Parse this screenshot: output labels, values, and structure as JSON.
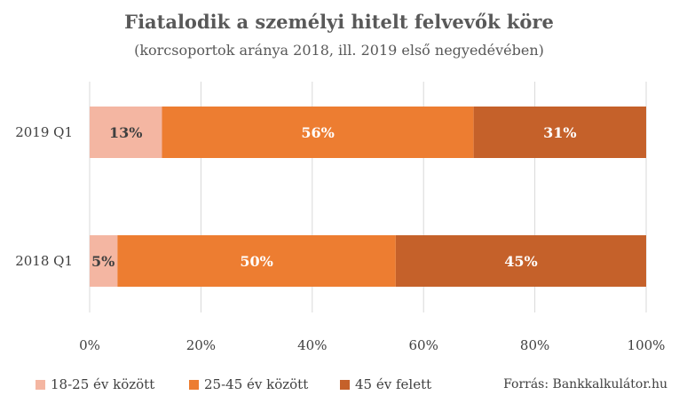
{
  "chart_data": {
    "type": "bar",
    "orientation": "horizontal",
    "stacked": true,
    "percent": true,
    "title": "Fiatalodik a személyi hitelt felvevők köre",
    "subtitle": "(korcsoportok aránya 2018, ill. 2019 első negyedévében)",
    "categories": [
      "2019 Q1",
      "2018 Q1"
    ],
    "series": [
      {
        "name": "18-25 év között",
        "color": "#f4b6a2",
        "label_color": "#404040",
        "values": [
          13,
          5
        ],
        "labels": [
          "13%",
          "5%"
        ]
      },
      {
        "name": "25-45 év között",
        "color": "#ed7d31",
        "label_color": "#ffffff",
        "values": [
          56,
          50
        ],
        "labels": [
          "56%",
          "50%"
        ]
      },
      {
        "name": "45 év felett",
        "color": "#c5612a",
        "label_color": "#ffffff",
        "values": [
          31,
          45
        ],
        "labels": [
          "31%",
          "45%"
        ]
      }
    ],
    "xlim": [
      0,
      100
    ],
    "xticks": [
      0,
      20,
      40,
      60,
      80,
      100
    ],
    "xtick_labels": [
      "0%",
      "20%",
      "40%",
      "60%",
      "80%",
      "100%"
    ],
    "grid": true,
    "legend_position": "bottom-left"
  },
  "source": "Forrás: Bankkalkulátor.hu"
}
